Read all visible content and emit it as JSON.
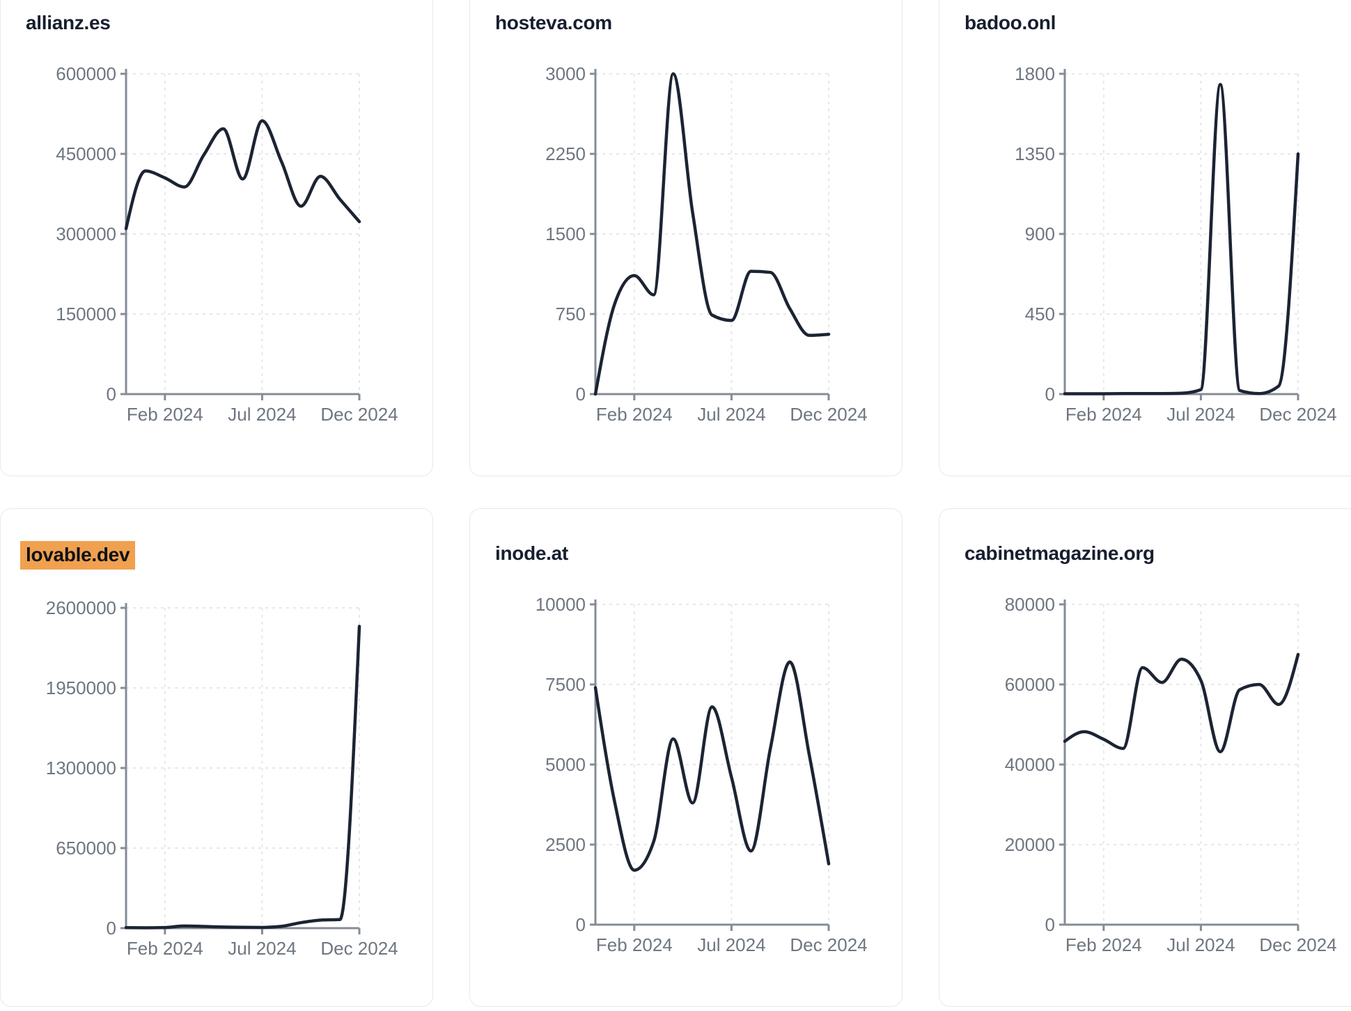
{
  "style": {
    "line_color": "#1c2433",
    "title_color": "#171e2e",
    "tick_label_color": "#6e7680",
    "axis_color": "#858c96",
    "gridline_color": "#e5e7ec",
    "highlight_color": "#f0a14f",
    "card_border_color": "#e7e8ef",
    "card_background": "#ffffff"
  },
  "x_months": [
    "Dec 2023",
    "Jan 2024",
    "Feb 2024",
    "Mar 2024",
    "Apr 2024",
    "May 2024",
    "Jun 2024",
    "Jul 2024",
    "Aug 2024",
    "Sep 2024",
    "Oct 2024",
    "Nov 2024",
    "Dec 2024"
  ],
  "x_tick_indices": [
    2,
    7,
    12
  ],
  "x_tick_labels": [
    "Feb 2024",
    "Jul 2024",
    "Dec 2024"
  ],
  "chart_data": [
    {
      "type": "line",
      "title": "allianz.es",
      "highlighted": false,
      "xlabel": "",
      "ylabel": "",
      "ylim": [
        0,
        600000
      ],
      "y_ticks": [
        0,
        150000,
        300000,
        450000,
        600000
      ],
      "grid": "dashed",
      "legend_position": "none",
      "x": [
        "Dec 2023",
        "Jan 2024",
        "Feb 2024",
        "Mar 2024",
        "Apr 2024",
        "May 2024",
        "Jun 2024",
        "Jul 2024",
        "Aug 2024",
        "Sep 2024",
        "Oct 2024",
        "Nov 2024",
        "Dec 2024"
      ],
      "values": [
        310000,
        418000,
        405000,
        388000,
        448000,
        497000,
        403000,
        512000,
        435000,
        352000,
        408000,
        365000,
        323000
      ]
    },
    {
      "type": "line",
      "title": "hosteva.com",
      "highlighted": false,
      "xlabel": "",
      "ylabel": "",
      "ylim": [
        0,
        3000
      ],
      "y_ticks": [
        0,
        750,
        1500,
        2250,
        3000
      ],
      "grid": "dashed",
      "legend_position": "none",
      "x": [
        "Dec 2023",
        "Jan 2024",
        "Feb 2024",
        "Mar 2024",
        "Apr 2024",
        "May 2024",
        "Jun 2024",
        "Jul 2024",
        "Aug 2024",
        "Sep 2024",
        "Oct 2024",
        "Nov 2024",
        "Dec 2024"
      ],
      "values": [
        0,
        850,
        1110,
        930,
        3000,
        1700,
        740,
        690,
        1150,
        1140,
        800,
        550,
        560
      ]
    },
    {
      "type": "line",
      "title": "badoo.onl",
      "highlighted": false,
      "xlabel": "",
      "ylabel": "",
      "ylim": [
        0,
        1800
      ],
      "y_ticks": [
        0,
        450,
        900,
        1350,
        1800
      ],
      "grid": "dashed",
      "legend_position": "none",
      "x": [
        "Dec 2023",
        "Jan 2024",
        "Feb 2024",
        "Mar 2024",
        "Apr 2024",
        "May 2024",
        "Jun 2024",
        "Jul 2024",
        "Aug 2024",
        "Sep 2024",
        "Oct 2024",
        "Nov 2024",
        "Dec 2024"
      ],
      "values": [
        2,
        2,
        2,
        3,
        3,
        3,
        5,
        25,
        1740,
        20,
        3,
        45,
        1350
      ]
    },
    {
      "type": "line",
      "title": "lovable.dev",
      "highlighted": true,
      "xlabel": "",
      "ylabel": "",
      "ylim": [
        0,
        2600000
      ],
      "y_ticks": [
        0,
        650000,
        1300000,
        1950000,
        2600000
      ],
      "grid": "dashed",
      "legend_position": "none",
      "x": [
        "Dec 2023",
        "Jan 2024",
        "Feb 2024",
        "Mar 2024",
        "Apr 2024",
        "May 2024",
        "Jun 2024",
        "Jul 2024",
        "Aug 2024",
        "Sep 2024",
        "Oct 2024",
        "Nov 2024",
        "Dec 2024"
      ],
      "values": [
        4000,
        3000,
        5000,
        18000,
        14000,
        9000,
        7000,
        6000,
        15000,
        45000,
        65000,
        70000,
        2450000
      ]
    },
    {
      "type": "line",
      "title": "inode.at",
      "highlighted": false,
      "xlabel": "",
      "ylabel": "",
      "ylim": [
        0,
        10000
      ],
      "y_ticks": [
        0,
        2500,
        5000,
        7500,
        10000
      ],
      "grid": "dashed",
      "legend_position": "none",
      "x": [
        "Dec 2023",
        "Jan 2024",
        "Feb 2024",
        "Mar 2024",
        "Apr 2024",
        "May 2024",
        "Jun 2024",
        "Jul 2024",
        "Aug 2024",
        "Sep 2024",
        "Oct 2024",
        "Nov 2024",
        "Dec 2024"
      ],
      "values": [
        7400,
        3800,
        1700,
        2600,
        5800,
        3800,
        6800,
        4600,
        2300,
        5500,
        8200,
        5300,
        1900
      ]
    },
    {
      "type": "line",
      "title": "cabinetmagazine.org",
      "highlighted": false,
      "xlabel": "",
      "ylabel": "",
      "ylim": [
        0,
        80000
      ],
      "y_ticks": [
        0,
        20000,
        40000,
        60000,
        80000
      ],
      "grid": "dashed",
      "legend_position": "none",
      "x": [
        "Dec 2023",
        "Jan 2024",
        "Feb 2024",
        "Mar 2024",
        "Apr 2024",
        "May 2024",
        "Jun 2024",
        "Jul 2024",
        "Aug 2024",
        "Sep 2024",
        "Oct 2024",
        "Nov 2024",
        "Dec 2024"
      ],
      "values": [
        45800,
        48200,
        46300,
        44000,
        64200,
        60500,
        66300,
        61000,
        43200,
        58700,
        60000,
        55000,
        67500
      ]
    }
  ]
}
